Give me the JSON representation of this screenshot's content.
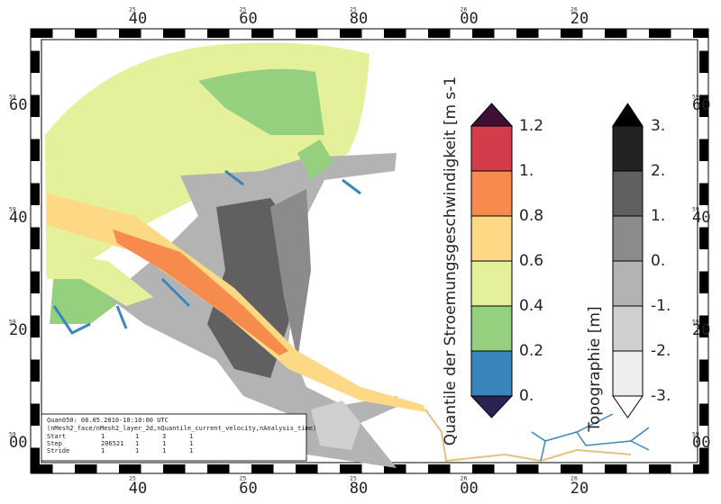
{
  "frame": {
    "top_labels": [
      {
        "minor": "25",
        "major": "40"
      },
      {
        "minor": "25",
        "major": "60"
      },
      {
        "minor": "25",
        "major": "80"
      },
      {
        "minor": "26",
        "major": "00"
      },
      {
        "minor": "26",
        "major": "20"
      }
    ],
    "side_labels": [
      {
        "minor": "59",
        "major": "60"
      },
      {
        "minor": "59",
        "major": "40"
      },
      {
        "minor": "59",
        "major": "20"
      },
      {
        "minor": "59",
        "major": "00"
      }
    ]
  },
  "velocity_legend": {
    "title": "Quantile der Stroemungsgeschwindigkeit [m s-1",
    "labels": [
      "1.2",
      "1.",
      "0.8",
      "0.6",
      "0.4",
      "0.2",
      "0."
    ],
    "colors": [
      "#3d1038",
      "#d33c4b",
      "#f68b4d",
      "#fdd885",
      "#e5f19a",
      "#94d07d",
      "#3986bd",
      "#2c2352"
    ]
  },
  "topo_legend": {
    "title": "Topographie [m]",
    "labels": [
      "3.",
      "2.",
      "1.",
      "0.",
      "-1.",
      "-2.",
      "-3."
    ],
    "colors": [
      "#000000",
      "#222222",
      "#606060",
      "#8b8b8b",
      "#b3b3b3",
      "#d0d0d0",
      "#eeeeee",
      "#ffffff"
    ]
  },
  "info_box": {
    "title": "Quan050: 08.05.2010-18:10:00 UTC",
    "subtitle": "(nMesh2_face/nMesh2_layer_2d,nQuantile_current_velocity,nAnalysis_time)",
    "rows": [
      [
        "Start",
        "1",
        "1",
        "3",
        "1"
      ],
      [
        "Step",
        "206521",
        "1",
        "1",
        "1"
      ],
      [
        "Stride",
        "1",
        "1",
        "1",
        "1"
      ]
    ]
  }
}
